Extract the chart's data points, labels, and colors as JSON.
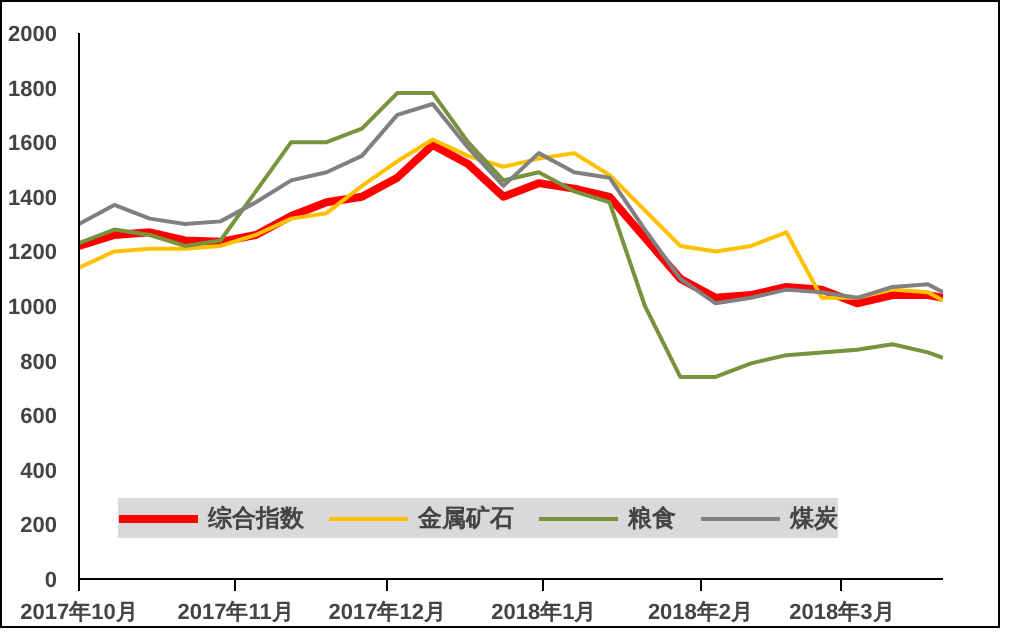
{
  "chart_data": {
    "type": "line",
    "x": [
      "2017-10-01",
      "2017-10-08",
      "2017-10-15",
      "2017-10-22",
      "2017-10-29",
      "2017-11-05",
      "2017-11-12",
      "2017-11-19",
      "2017-11-26",
      "2017-12-03",
      "2017-12-10",
      "2017-12-17",
      "2017-12-24",
      "2017-12-31",
      "2018-01-07",
      "2018-01-14",
      "2018-01-21",
      "2018-01-28",
      "2018-02-04",
      "2018-02-11",
      "2018-02-18",
      "2018-02-25",
      "2018-03-04",
      "2018-03-11",
      "2018-03-18",
      "2018-03-21"
    ],
    "series": [
      {
        "name": "综合指数",
        "color": "#ff0000",
        "values": [
          1220,
          1260,
          1270,
          1240,
          1235,
          1260,
          1330,
          1380,
          1400,
          1470,
          1590,
          1520,
          1400,
          1450,
          1430,
          1400,
          1250,
          1100,
          1030,
          1040,
          1070,
          1060,
          1010,
          1040,
          1040,
          1030
        ]
      },
      {
        "name": "金属矿石",
        "color": "#ffc000",
        "values": [
          1140,
          1200,
          1210,
          1210,
          1220,
          1260,
          1320,
          1340,
          1440,
          1530,
          1610,
          1550,
          1510,
          1540,
          1560,
          1480,
          1350,
          1220,
          1200,
          1220,
          1270,
          1030,
          1030,
          1060,
          1050,
          1020
        ]
      },
      {
        "name": "粮食",
        "color": "#77933c",
        "values": [
          1230,
          1280,
          1260,
          1220,
          1240,
          1420,
          1600,
          1600,
          1650,
          1780,
          1780,
          1600,
          1460,
          1490,
          1420,
          1380,
          1000,
          740,
          740,
          790,
          820,
          830,
          840,
          860,
          830,
          810
        ]
      },
      {
        "name": "煤炭",
        "color": "#808080",
        "values": [
          1300,
          1370,
          1320,
          1300,
          1310,
          1380,
          1460,
          1490,
          1550,
          1700,
          1740,
          1580,
          1440,
          1560,
          1490,
          1470,
          1280,
          1100,
          1010,
          1030,
          1060,
          1050,
          1030,
          1070,
          1080,
          1050
        ]
      }
    ],
    "xlim": [
      "2017-10-01",
      "2018-03-21"
    ],
    "xticks": [
      {
        "value": "2017-10-01",
        "label": "2017年10月"
      },
      {
        "value": "2017-11-01",
        "label": "2017年11月"
      },
      {
        "value": "2017-12-01",
        "label": "2017年12月"
      },
      {
        "value": "2018-01-01",
        "label": "2018年1月"
      },
      {
        "value": "2018-02-01",
        "label": "2018年2月"
      },
      {
        "value": "2018-03-01",
        "label": "2018年3月"
      }
    ],
    "ylim": [
      0,
      2000
    ],
    "yticks": [
      0,
      200,
      400,
      600,
      800,
      1000,
      1200,
      1400,
      1600,
      1800,
      2000
    ],
    "grid": false,
    "legend": "bottom left",
    "line_style": "solid",
    "marker": "none"
  }
}
